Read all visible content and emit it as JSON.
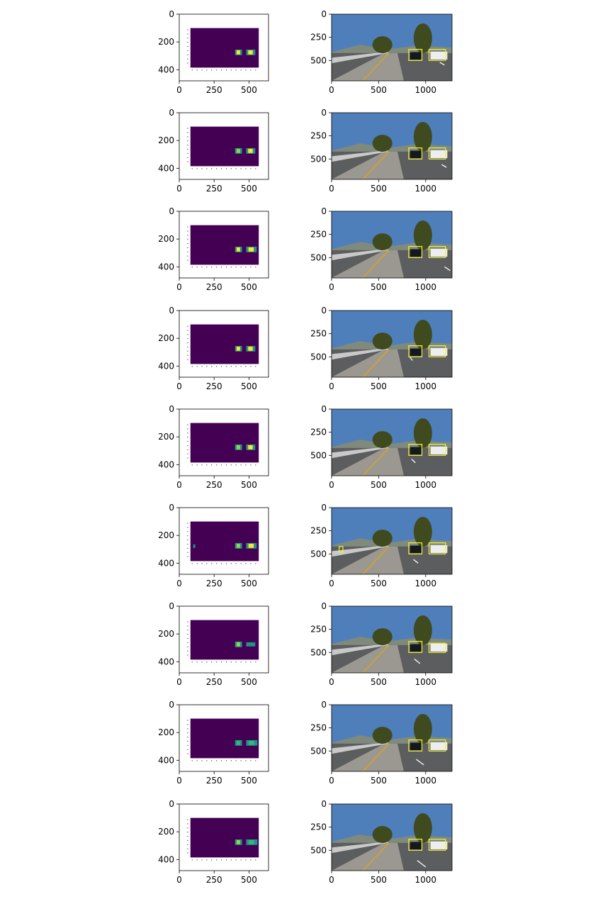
{
  "chart_data": {
    "type": "heatmap",
    "rows": 9,
    "colors": {
      "heatmap_background": "#440154",
      "heatmap_hot": [
        "#21918c",
        "#35b779",
        "#90d743",
        "#fde725"
      ],
      "box": "#f2f23a",
      "sky": "#4f7fba",
      "road": "#5c5d5f",
      "tree": "#3f4a1e"
    },
    "heatmap_panel": {
      "x_ticks": [
        0,
        250,
        500
      ],
      "y_ticks": [
        0,
        200,
        400
      ],
      "x_tick_labels": [
        "0",
        "250",
        "500"
      ],
      "y_tick_labels": [
        "0",
        "200",
        "400"
      ],
      "xlim": [
        0,
        640
      ],
      "ylim": [
        480,
        0
      ]
    },
    "image_panel": {
      "x_ticks": [
        0,
        500,
        1000
      ],
      "y_ticks": [
        0,
        250,
        500
      ],
      "x_tick_labels": [
        "0",
        "500",
        "1000"
      ],
      "y_tick_labels": [
        "0",
        "250",
        "500"
      ],
      "xlim": [
        0,
        1280
      ],
      "ylim": [
        720,
        0
      ]
    },
    "frames": [
      {
        "blobs": [
          [
            400,
            255,
            450,
            295,
            3
          ],
          [
            480,
            255,
            545,
            295,
            3
          ]
        ],
        "boxes": [
          [
            820,
            380,
            960,
            500
          ],
          [
            1035,
            380,
            1210,
            500
          ]
        ],
        "lane_dashes": [
          [
            1150,
            520,
            1200,
            550
          ]
        ]
      },
      {
        "blobs": [
          [
            400,
            255,
            450,
            295,
            2
          ],
          [
            480,
            255,
            545,
            295,
            3
          ]
        ],
        "boxes": [
          [
            820,
            380,
            960,
            500
          ],
          [
            1035,
            380,
            1210,
            500
          ]
        ],
        "lane_dashes": [
          [
            1170,
            560,
            1220,
            590
          ]
        ]
      },
      {
        "blobs": [
          [
            400,
            255,
            450,
            295,
            3
          ],
          [
            480,
            255,
            555,
            295,
            3
          ]
        ],
        "boxes": [
          [
            820,
            380,
            960,
            500
          ],
          [
            1035,
            380,
            1210,
            500
          ]
        ],
        "lane_dashes": [
          [
            1200,
            600,
            1260,
            640
          ]
        ]
      },
      {
        "blobs": [
          [
            400,
            255,
            450,
            295,
            3
          ],
          [
            480,
            255,
            545,
            295,
            3
          ]
        ],
        "boxes": [
          [
            820,
            380,
            960,
            500
          ],
          [
            1035,
            380,
            1210,
            500
          ]
        ],
        "lane_dashes": [
          [
            830,
            500,
            860,
            540
          ]
        ]
      },
      {
        "blobs": [
          [
            400,
            255,
            450,
            295,
            2
          ],
          [
            480,
            255,
            545,
            295,
            3
          ]
        ],
        "boxes": [
          [
            820,
            380,
            960,
            500
          ],
          [
            1035,
            380,
            1210,
            500
          ]
        ],
        "lane_dashes": [
          [
            850,
            540,
            890,
            580
          ]
        ]
      },
      {
        "blobs": [
          [
            100,
            265,
            115,
            290,
            0
          ],
          [
            400,
            255,
            450,
            295,
            2
          ],
          [
            480,
            255,
            555,
            295,
            3
          ]
        ],
        "boxes": [
          [
            80,
            420,
            120,
            480
          ],
          [
            820,
            380,
            960,
            500
          ],
          [
            1035,
            380,
            1210,
            500
          ]
        ],
        "lane_dashes": [
          [
            870,
            560,
            920,
            600
          ]
        ]
      },
      {
        "blobs": [
          [
            400,
            255,
            450,
            295,
            2
          ],
          [
            480,
            260,
            545,
            290,
            0
          ]
        ],
        "boxes": [
          [
            820,
            380,
            960,
            500
          ],
          [
            1035,
            400,
            1210,
            500
          ]
        ],
        "lane_dashes": [
          [
            880,
            570,
            940,
            620
          ]
        ]
      },
      {
        "blobs": [
          [
            400,
            255,
            450,
            295,
            1
          ],
          [
            480,
            255,
            560,
            295,
            1
          ]
        ],
        "boxes": [
          [
            820,
            380,
            960,
            500
          ],
          [
            1035,
            380,
            1210,
            500
          ]
        ],
        "lane_dashes": [
          [
            900,
            590,
            980,
            650
          ]
        ]
      },
      {
        "blobs": [
          [
            400,
            255,
            450,
            295,
            2
          ],
          [
            480,
            255,
            560,
            295,
            1
          ]
        ],
        "boxes": [
          [
            820,
            380,
            960,
            500
          ],
          [
            1035,
            380,
            1210,
            500
          ]
        ],
        "lane_dashes": [
          [
            910,
            610,
            1000,
            680
          ]
        ]
      }
    ]
  }
}
